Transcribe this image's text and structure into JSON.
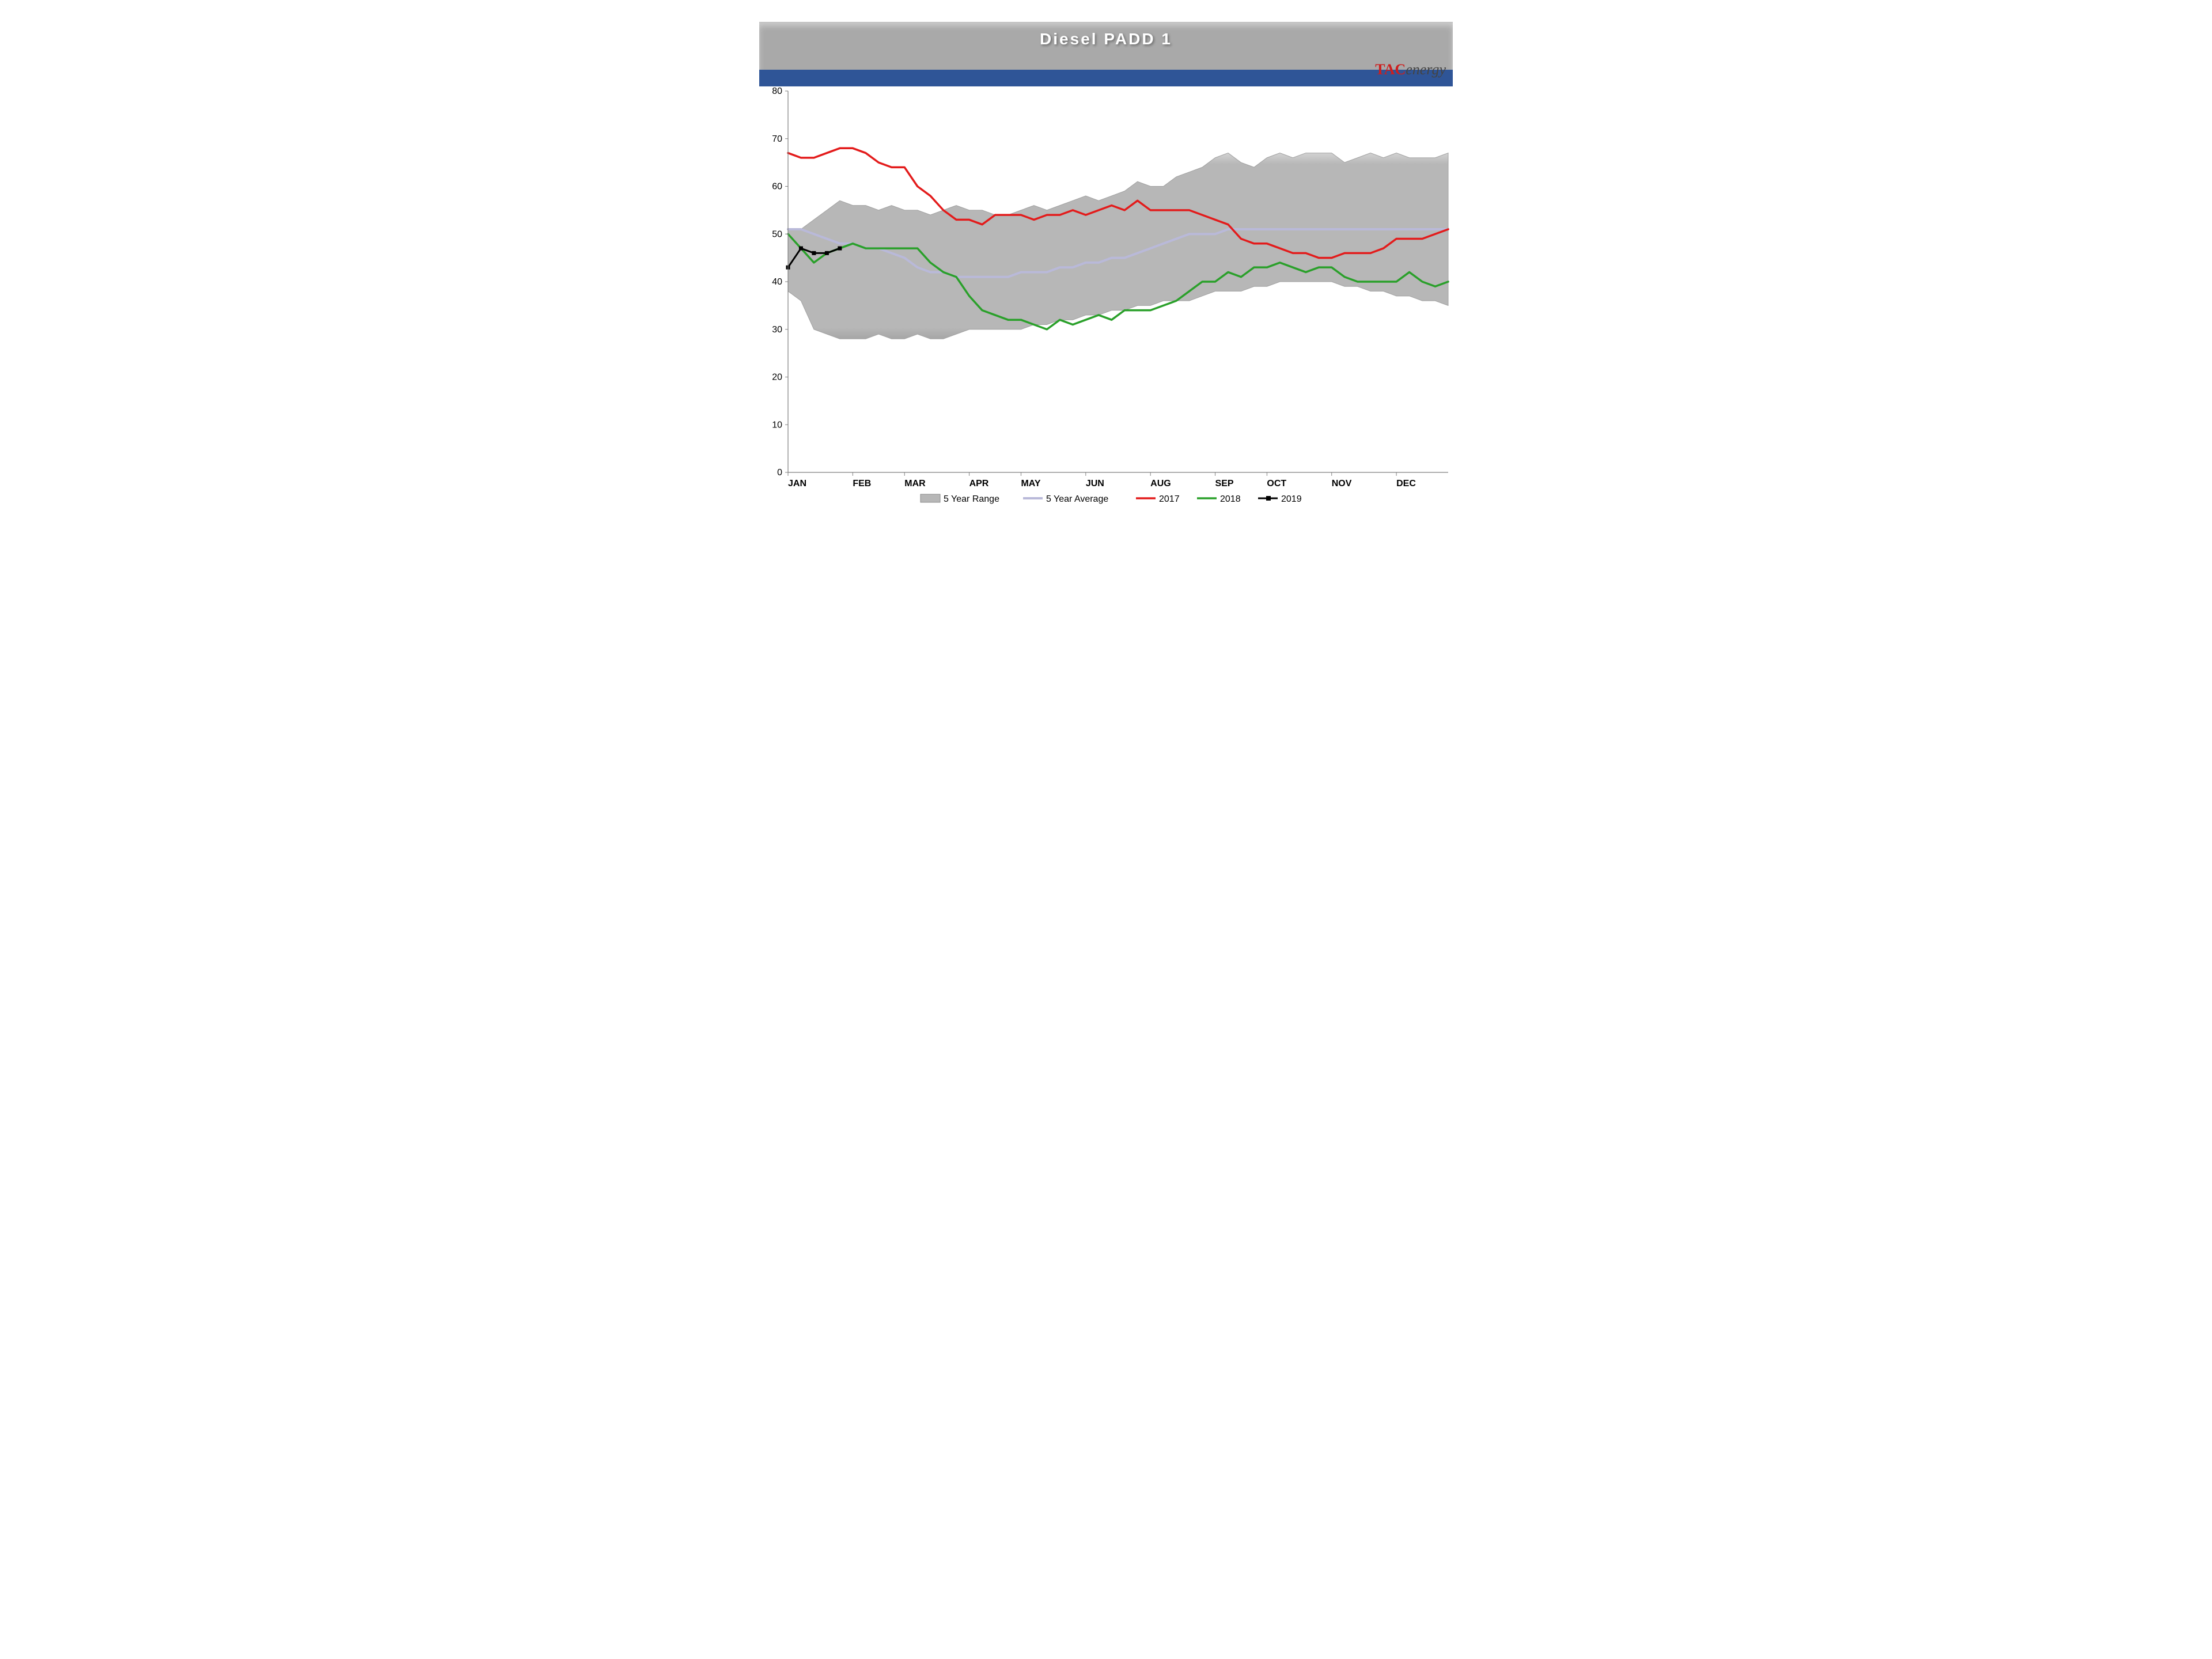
{
  "chart": {
    "title": "Diesel PADD 1",
    "logo": {
      "brand": "TAC",
      "suffix": "energy"
    },
    "type": "line+area",
    "background_color": "#ffffff",
    "header_band_color": "#a9a9a9",
    "header_blue_color": "#2f5597",
    "title_color": "#ffffff",
    "title_fontsize": 28,
    "axis_fontsize": 16,
    "legend_fontsize": 16,
    "ylim": [
      0,
      80
    ],
    "ytick_step": 10,
    "yticks": [
      0,
      10,
      20,
      30,
      40,
      50,
      60,
      70,
      80
    ],
    "x_categories": [
      "JAN",
      "FEB",
      "MAR",
      "APR",
      "MAY",
      "JUN",
      "AUG",
      "SEP",
      "OCT",
      "NOV",
      "DEC"
    ],
    "weeks": 52,
    "x_tick_weeks": [
      0,
      5,
      9,
      14,
      18,
      23,
      28,
      33,
      37,
      42,
      47
    ],
    "range_color": "#b7b7b7",
    "range_edge_color": "#9c9c9c",
    "average_color": "#b9b9d9",
    "series": {
      "range_high": [
        51,
        51,
        53,
        55,
        57,
        56,
        56,
        55,
        56,
        55,
        55,
        54,
        55,
        56,
        55,
        55,
        54,
        54,
        55,
        56,
        55,
        56,
        57,
        58,
        57,
        58,
        59,
        61,
        60,
        60,
        62,
        63,
        64,
        66,
        67,
        65,
        64,
        66,
        67,
        66,
        67,
        67,
        67,
        65,
        66,
        67,
        66,
        67,
        66,
        66,
        66,
        67
      ],
      "range_low": [
        38,
        36,
        30,
        29,
        28,
        28,
        28,
        29,
        28,
        28,
        29,
        28,
        28,
        29,
        30,
        30,
        30,
        30,
        30,
        31,
        31,
        32,
        32,
        33,
        33,
        34,
        34,
        35,
        35,
        36,
        36,
        36,
        37,
        38,
        38,
        38,
        39,
        39,
        40,
        40,
        40,
        40,
        40,
        39,
        39,
        38,
        38,
        37,
        37,
        36,
        36,
        35
      ],
      "average": [
        51,
        51,
        50,
        49,
        48,
        48,
        47,
        47,
        46,
        45,
        43,
        42,
        42,
        41,
        41,
        41,
        41,
        41,
        42,
        42,
        42,
        43,
        43,
        44,
        44,
        45,
        45,
        46,
        47,
        48,
        49,
        50,
        50,
        50,
        51,
        51,
        51,
        51,
        51,
        51,
        51,
        51,
        51,
        51,
        51,
        51,
        51,
        51,
        51,
        51,
        51,
        51
      ],
      "y2017": [
        67,
        66,
        66,
        67,
        68,
        68,
        67,
        65,
        64,
        64,
        60,
        58,
        55,
        53,
        53,
        52,
        54,
        54,
        54,
        53,
        54,
        54,
        55,
        54,
        55,
        56,
        55,
        57,
        55,
        55,
        55,
        55,
        54,
        53,
        52,
        49,
        48,
        48,
        47,
        46,
        46,
        45,
        45,
        46,
        46,
        46,
        47,
        49,
        49,
        49,
        50,
        51
      ],
      "y2018": [
        50,
        47,
        44,
        46,
        47,
        48,
        47,
        47,
        47,
        47,
        47,
        44,
        42,
        41,
        37,
        34,
        33,
        32,
        32,
        31,
        30,
        32,
        31,
        32,
        33,
        32,
        34,
        34,
        34,
        35,
        36,
        38,
        40,
        40,
        42,
        41,
        43,
        43,
        44,
        43,
        42,
        43,
        43,
        41,
        40,
        40,
        40,
        40,
        42,
        40,
        39,
        40
      ],
      "y2019": [
        43,
        47,
        46,
        46,
        47
      ]
    },
    "series_style": {
      "y2017": {
        "color": "#e31b1b",
        "width": 3.5,
        "label": "2017"
      },
      "y2018": {
        "color": "#2aa02a",
        "width": 3.5,
        "label": "2018"
      },
      "y2019": {
        "color": "#000000",
        "width": 3,
        "label": "2019",
        "marker": "square",
        "marker_size": 7
      },
      "average": {
        "color": "#b9b9d9",
        "width": 4,
        "label": "5 Year Average"
      },
      "range": {
        "fill": "#b7b7b7",
        "stroke": "#a0a0a0",
        "label": "5 Year Range"
      }
    },
    "legend_order": [
      "range",
      "average",
      "y2017",
      "y2018",
      "y2019"
    ]
  }
}
